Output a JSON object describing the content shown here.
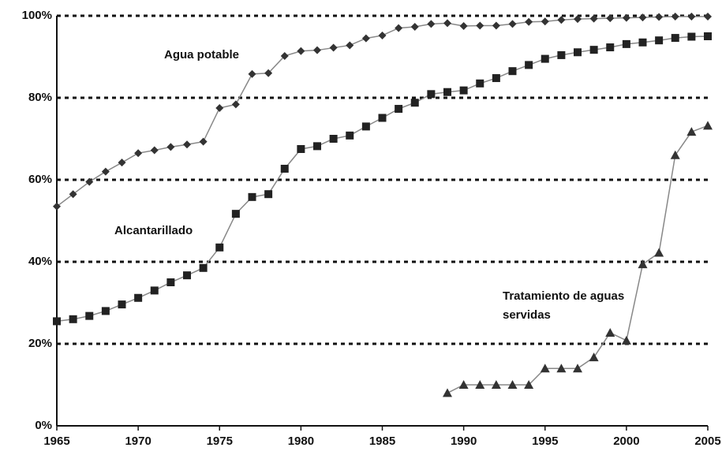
{
  "chart_data": {
    "type": "line",
    "x": [
      1965,
      1966,
      1967,
      1968,
      1969,
      1970,
      1971,
      1972,
      1973,
      1974,
      1975,
      1976,
      1977,
      1978,
      1979,
      1980,
      1981,
      1982,
      1983,
      1984,
      1985,
      1986,
      1987,
      1988,
      1989,
      1990,
      1991,
      1992,
      1993,
      1994,
      1995,
      1996,
      1997,
      1998,
      1999,
      2000,
      2001,
      2002,
      2003,
      2004,
      2005
    ],
    "series": [
      {
        "name": "Agua potable",
        "color": "#333333",
        "marker": "diamond",
        "values": [
          53.5,
          56.5,
          59.5,
          62,
          64.2,
          66.5,
          67.2,
          68,
          68.6,
          69.3,
          77.5,
          78.4,
          85.8,
          86,
          90.2,
          91.4,
          91.6,
          92.2,
          92.8,
          94.5,
          95.2,
          97,
          97.3,
          98,
          98.2,
          97.5,
          97.6,
          97.6,
          98,
          98.5,
          98.6,
          99,
          99.2,
          99.3,
          99.4,
          99.5,
          99.6,
          99.7,
          99.8,
          99.8,
          99.8
        ]
      },
      {
        "name": "Alcantarillado",
        "color": "#222222",
        "marker": "square",
        "values": [
          25.5,
          26,
          26.8,
          28,
          29.6,
          31.2,
          33,
          35,
          36.7,
          38.5,
          43.5,
          51.7,
          55.8,
          56.5,
          62.7,
          67.5,
          68.2,
          70,
          70.8,
          73,
          75.1,
          77.3,
          78.8,
          80.9,
          81.4,
          81.8,
          83.5,
          84.8,
          86.5,
          88,
          89.5,
          90.4,
          91.1,
          91.7,
          92.3,
          93.1,
          93.5,
          94,
          94.6,
          94.9,
          95
        ]
      },
      {
        "name": "Tratamiento de aguas servidas",
        "color": "#333333",
        "marker": "triangle",
        "values": [
          null,
          null,
          null,
          null,
          null,
          null,
          null,
          null,
          null,
          null,
          null,
          null,
          null,
          null,
          null,
          null,
          null,
          null,
          null,
          null,
          null,
          null,
          null,
          null,
          8,
          10,
          10,
          10,
          10,
          10,
          14,
          14,
          14,
          16.7,
          22.7,
          20.8,
          39.4,
          42.2,
          66,
          71.7,
          73.2
        ]
      }
    ],
    "xlim": [
      1965,
      2005
    ],
    "xticks": [
      1965,
      1970,
      1975,
      1980,
      1985,
      1990,
      1995,
      2000,
      2005
    ],
    "ylim": [
      0,
      100
    ],
    "yticks": [
      {
        "value": 0,
        "label": "0%"
      },
      {
        "value": 20,
        "label": "20%"
      },
      {
        "value": 40,
        "label": "40%"
      },
      {
        "value": 60,
        "label": "60%"
      },
      {
        "value": 80,
        "label": "80%"
      },
      {
        "value": 100,
        "label": "100%"
      }
    ],
    "grid": true
  }
}
